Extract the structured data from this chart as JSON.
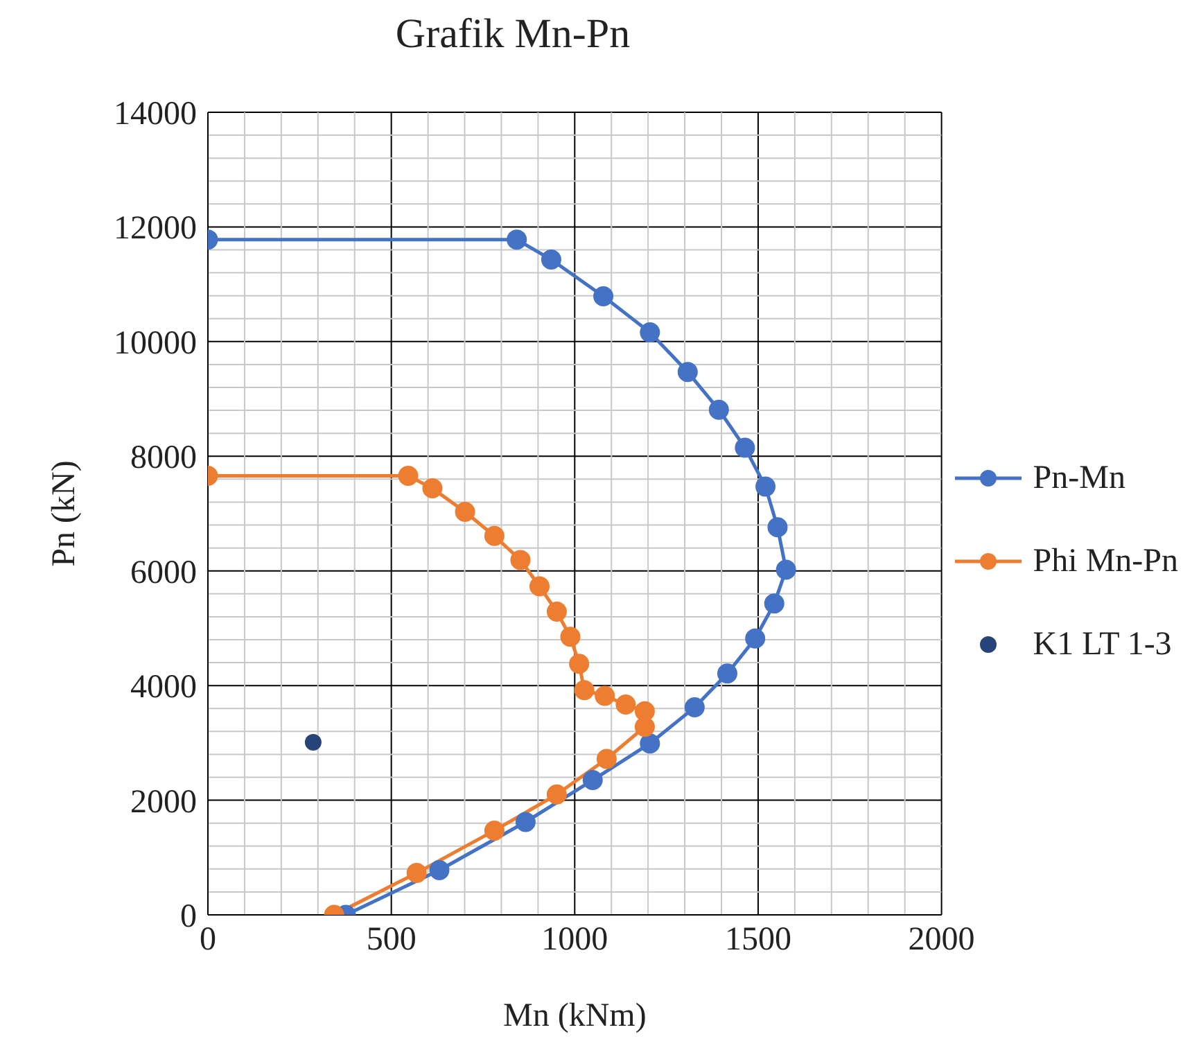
{
  "chart_data": {
    "type": "line",
    "title": "Grafik Mn-Pn",
    "xlabel": "Mn (kNm)",
    "ylabel": "Pn (kN)",
    "xlim": [
      0,
      2000
    ],
    "xticks": [
      0,
      500,
      1000,
      1500,
      2000
    ],
    "ylim": [
      0,
      14000
    ],
    "yticks": [
      0,
      2000,
      4000,
      6000,
      8000,
      10000,
      12000,
      14000
    ],
    "grid": true,
    "legend": "right",
    "marker": "circle",
    "line_style": "solid",
    "series": [
      {
        "name": "Pn-Mn",
        "color": "#4472c4",
        "x": [
          0,
          842,
          936,
          1078,
          1205,
          1308,
          1393,
          1464,
          1520,
          1553,
          1576,
          1544,
          1492,
          1416,
          1327,
          1205,
          1049,
          866,
          631,
          376
        ],
        "values": [
          11780,
          11780,
          11430,
          10790,
          10160,
          9470,
          8810,
          8150,
          7470,
          6760,
          6020,
          5430,
          4820,
          4210,
          3620,
          2990,
          2350,
          1620,
          780,
          0
        ]
      },
      {
        "name": "Phi Mn-Pn",
        "color": "#ed7d31",
        "x": [
          0,
          546,
          612,
          701,
          781,
          852,
          904,
          951,
          988,
          1012,
          1026,
          1082,
          1139,
          1191,
          1191,
          1087,
          951,
          781,
          569,
          344
        ],
        "values": [
          7660,
          7660,
          7440,
          7030,
          6610,
          6190,
          5730,
          5290,
          4850,
          4380,
          3920,
          3820,
          3670,
          3550,
          3280,
          2720,
          2100,
          1470,
          730,
          0
        ]
      },
      {
        "name": "K1 LT 1-3",
        "type": "scatter",
        "color": "#264478",
        "x": [
          287
        ],
        "values": [
          3010
        ]
      }
    ]
  }
}
